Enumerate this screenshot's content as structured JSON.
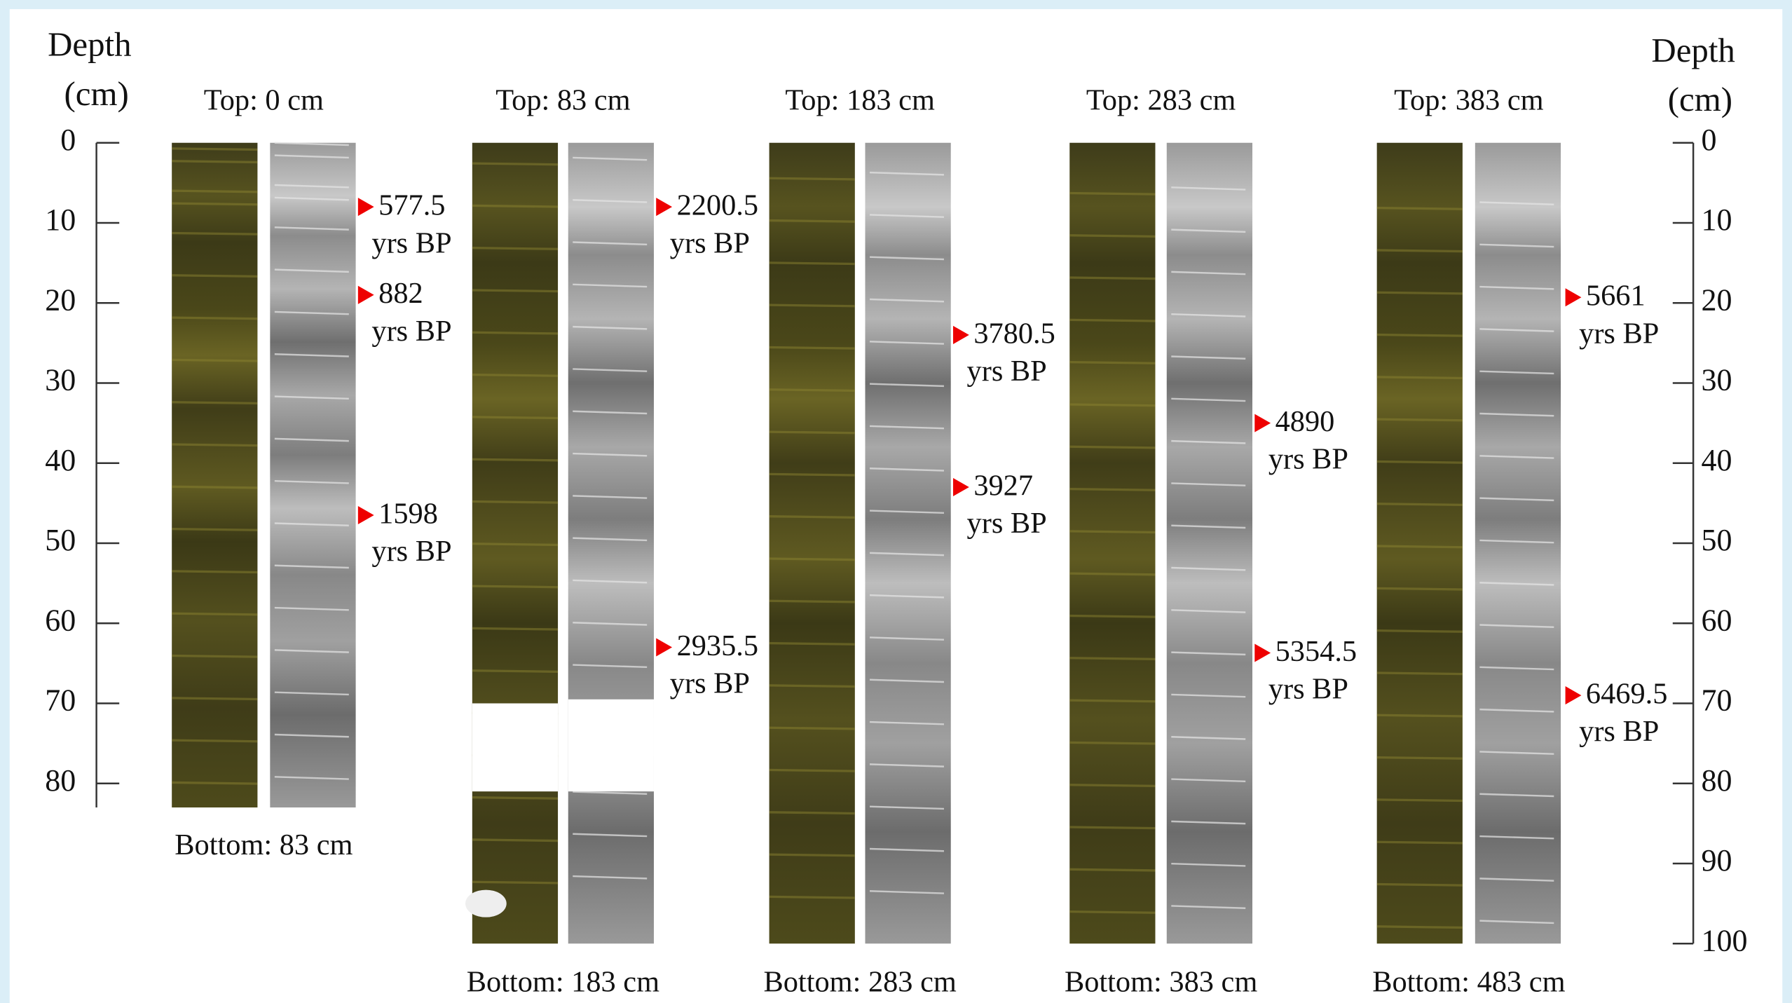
{
  "left_axis": {
    "title": [
      "Depth",
      "(cm)"
    ],
    "range": [
      0,
      83
    ],
    "ticks": [
      0,
      10,
      20,
      30,
      40,
      50,
      60,
      70,
      80
    ]
  },
  "right_axis": {
    "title": [
      "Depth",
      "(cm)"
    ],
    "range": [
      0,
      100
    ],
    "ticks": [
      0,
      10,
      20,
      30,
      40,
      50,
      60,
      70,
      80,
      90,
      100
    ]
  },
  "cores": [
    {
      "top": "Top: 0 cm",
      "bottom": "Bottom: 83 cm",
      "dates": [
        {
          "age": "577.5",
          "unit": "yrs BP",
          "depth": 8
        },
        {
          "age": "882",
          "unit": "yrs BP",
          "depth": 19
        },
        {
          "age": "1598",
          "unit": "yrs BP",
          "depth": 46.5
        }
      ]
    },
    {
      "top": "Top: 83 cm",
      "bottom": "Bottom: 183 cm",
      "dates": [
        {
          "age": "2200.5",
          "unit": "yrs BP",
          "depth": 8
        },
        {
          "age": "2935.5",
          "unit": "yrs BP",
          "depth": 63
        }
      ]
    },
    {
      "top": "Top: 183 cm",
      "bottom": "Bottom: 283 cm",
      "dates": [
        {
          "age": "3780.5",
          "unit": "yrs BP",
          "depth": 24
        },
        {
          "age": "3927",
          "unit": "yrs BP",
          "depth": 43
        }
      ]
    },
    {
      "top": "Top: 283 cm",
      "bottom": "Bottom: 383 cm",
      "dates": [
        {
          "age": "4890",
          "unit": "yrs BP",
          "depth": 35
        },
        {
          "age": "5354.5",
          "unit": "yrs BP",
          "depth": 63.7
        }
      ]
    },
    {
      "top": "Top: 383 cm",
      "bottom": "Bottom: 483 cm",
      "dates": [
        {
          "age": "5661",
          "unit": "yrs BP",
          "depth": 19.3
        },
        {
          "age": "6469.5",
          "unit": "yrs BP",
          "depth": 69
        }
      ]
    }
  ]
}
